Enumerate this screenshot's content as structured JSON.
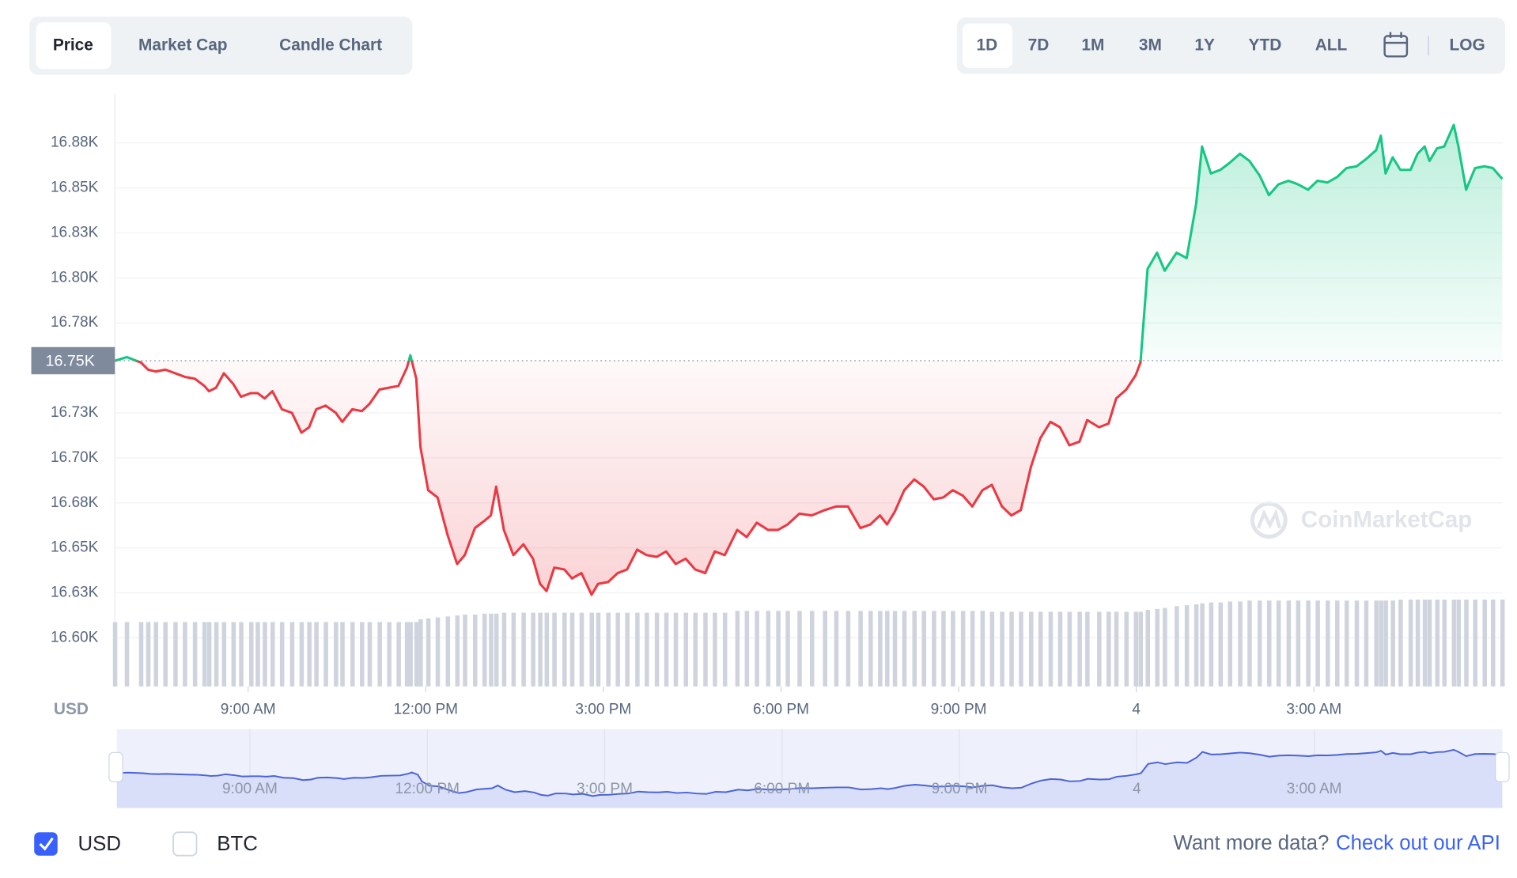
{
  "tabs": [
    "Price",
    "Market Cap",
    "Candle Chart"
  ],
  "ranges": [
    "1D",
    "7D",
    "1M",
    "3M",
    "1Y",
    "YTD",
    "ALL"
  ],
  "log_button": "LOG",
  "watermark": "CoinMarketCap",
  "footer": {
    "currencies": [
      "USD",
      "BTC"
    ],
    "more_data": "Want more data?",
    "api_link": "Check out our API"
  },
  "chart_data": {
    "type": "line",
    "y_unit": "USD",
    "up_color": "#16c784",
    "down_color": "#ea3943",
    "reference": {
      "value": 16754,
      "label": "16.75K"
    },
    "xlim": [
      6.75,
      30.18
    ],
    "ylim": [
      16573,
      16902
    ],
    "xticks": [
      {
        "value": 9,
        "label": "9:00 AM"
      },
      {
        "value": 12,
        "label": "12:00 PM"
      },
      {
        "value": 15,
        "label": "3:00 PM"
      },
      {
        "value": 18,
        "label": "6:00 PM"
      },
      {
        "value": 21,
        "label": "9:00 PM"
      },
      {
        "value": 24,
        "label": "4"
      },
      {
        "value": 27,
        "label": "3:00 AM"
      }
    ],
    "yticks": [
      {
        "value": 16600,
        "label": "16.60K"
      },
      {
        "value": 16625,
        "label": "16.63K"
      },
      {
        "value": 16650,
        "label": "16.65K"
      },
      {
        "value": 16675,
        "label": "16.68K"
      },
      {
        "value": 16700,
        "label": "16.70K"
      },
      {
        "value": 16725,
        "label": "16.73K"
      },
      {
        "value": 16775,
        "label": "16.78K"
      },
      {
        "value": 16800,
        "label": "16.80K"
      },
      {
        "value": 16825,
        "label": "16.83K"
      },
      {
        "value": 16850,
        "label": "16.85K"
      },
      {
        "value": 16875,
        "label": "16.88K"
      }
    ],
    "grid": true,
    "x": [
      6.75,
      6.95,
      7.19,
      7.31,
      7.44,
      7.6,
      7.77,
      7.93,
      8.1,
      8.26,
      8.34,
      8.46,
      8.59,
      8.75,
      8.88,
      9.05,
      9.16,
      9.28,
      9.41,
      9.57,
      9.74,
      9.9,
      10.03,
      10.15,
      10.31,
      10.48,
      10.59,
      10.76,
      10.92,
      11.05,
      11.22,
      11.38,
      11.54,
      11.68,
      11.74,
      11.84,
      11.91,
      12.04,
      12.2,
      12.37,
      12.53,
      12.66,
      12.83,
      12.99,
      13.1,
      13.19,
      13.32,
      13.48,
      13.65,
      13.81,
      13.93,
      14.04,
      14.17,
      14.34,
      14.47,
      14.63,
      14.8,
      14.91,
      15.08,
      15.24,
      15.4,
      15.57,
      15.73,
      15.9,
      16.06,
      16.22,
      16.39,
      16.55,
      16.72,
      16.88,
      17.05,
      17.26,
      17.42,
      17.59,
      17.78,
      17.95,
      18.11,
      18.31,
      18.52,
      18.74,
      18.93,
      19.13,
      19.34,
      19.51,
      19.67,
      19.79,
      19.92,
      20.08,
      20.25,
      20.41,
      20.58,
      20.74,
      20.9,
      21.07,
      21.23,
      21.4,
      21.56,
      21.73,
      21.89,
      22.05,
      22.22,
      22.38,
      22.55,
      22.71,
      22.87,
      23.04,
      23.17,
      23.37,
      23.53,
      23.66,
      23.83,
      23.99,
      24.07,
      24.19,
      24.35,
      24.48,
      24.68,
      24.85,
      25.01,
      25.11,
      25.26,
      25.42,
      25.58,
      25.75,
      25.91,
      26.08,
      26.24,
      26.4,
      26.57,
      26.73,
      26.9,
      27.06,
      27.23,
      27.39,
      27.55,
      27.72,
      27.88,
      28.05,
      28.13,
      28.21,
      28.33,
      28.46,
      28.63,
      28.75,
      28.87,
      28.95,
      29.08,
      29.2,
      29.36,
      29.44,
      29.57,
      29.72,
      29.88,
      30.02,
      30.18
    ],
    "values": [
      16754,
      16756,
      16753,
      16749,
      16748,
      16749,
      16747,
      16745,
      16744,
      16740,
      16737,
      16739,
      16747,
      16741,
      16734,
      16736,
      16736,
      16733,
      16737,
      16727,
      16725,
      16714,
      16717,
      16727,
      16729,
      16725,
      16720,
      16727,
      16726,
      16730,
      16738,
      16739,
      16740,
      16750,
      16757,
      16744,
      16706,
      16682,
      16678,
      16657,
      16641,
      16646,
      16661,
      16665,
      16668,
      16684,
      16660,
      16646,
      16652,
      16644,
      16630,
      16626,
      16639,
      16638,
      16633,
      16636,
      16624,
      16630,
      16631,
      16636,
      16638,
      16649,
      16646,
      16645,
      16648,
      16641,
      16644,
      16638,
      16636,
      16648,
      16646,
      16660,
      16656,
      16664,
      16660,
      16660,
      16663,
      16669,
      16668,
      16671,
      16673,
      16673,
      16661,
      16663,
      16668,
      16663,
      16670,
      16682,
      16688,
      16684,
      16677,
      16678,
      16682,
      16679,
      16673,
      16682,
      16685,
      16673,
      16668,
      16671,
      16695,
      16711,
      16720,
      16717,
      16707,
      16709,
      16721,
      16717,
      16719,
      16733,
      16738,
      16746,
      16753,
      16805,
      16814,
      16804,
      16814,
      16811,
      16841,
      16873,
      16858,
      16860,
      16864,
      16869,
      16865,
      16857,
      16846,
      16852,
      16854,
      16852,
      16849,
      16854,
      16853,
      16856,
      16861,
      16862,
      16866,
      16871,
      16879,
      16858,
      16867,
      16860,
      16860,
      16869,
      16873,
      16865,
      16872,
      16873,
      16885,
      16873,
      16849,
      16861,
      16862,
      16861,
      16855
    ],
    "volume": {
      "color": "#cfd3dd",
      "ylim": [
        0,
        100
      ],
      "values": [
        69,
        69,
        69,
        69,
        69,
        69,
        69,
        69,
        69,
        69,
        69,
        69,
        69,
        69,
        69,
        69,
        69,
        69,
        69,
        69,
        69,
        69,
        69,
        69,
        69,
        69,
        69,
        69,
        69,
        69,
        69,
        69,
        69,
        69,
        69,
        69,
        72,
        73,
        74,
        75,
        76,
        77,
        77,
        78,
        78,
        78,
        79,
        79,
        79,
        79,
        79,
        79,
        79,
        79,
        79,
        79,
        79,
        79,
        79,
        79,
        79,
        79,
        79,
        79,
        79,
        79,
        79,
        79,
        79,
        79,
        79,
        81,
        81,
        81,
        81,
        81,
        81,
        81,
        81,
        81,
        81,
        81,
        81,
        81,
        81,
        81,
        81,
        81,
        81,
        81,
        81,
        81,
        81,
        81,
        81,
        81,
        80,
        80,
        80,
        80,
        80,
        80,
        80,
        80,
        80,
        80,
        80,
        80,
        80,
        80,
        80,
        80,
        80,
        82,
        83,
        84,
        86,
        87,
        88,
        89,
        90,
        90,
        91,
        91,
        92,
        92,
        92,
        92,
        92,
        92,
        92,
        92,
        92,
        92,
        92,
        92,
        92,
        92,
        92,
        92,
        92,
        93,
        93,
        93,
        93,
        93,
        93,
        93,
        93,
        93,
        93,
        93,
        93,
        93,
        93
      ]
    }
  }
}
